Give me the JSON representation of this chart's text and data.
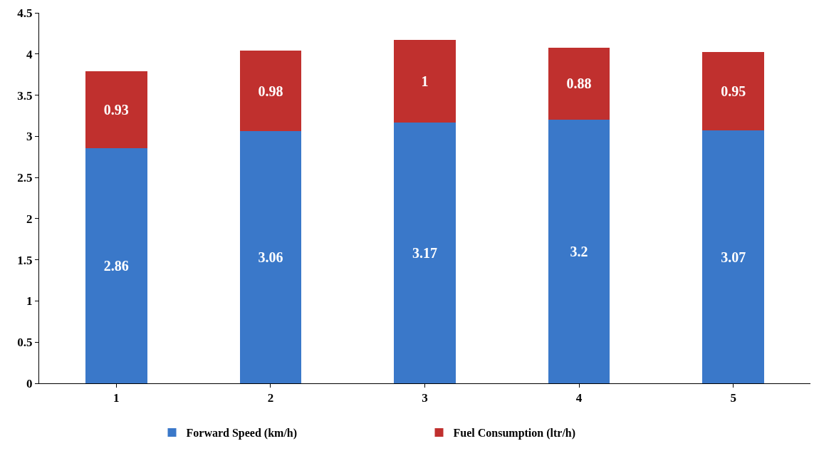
{
  "chart_data": {
    "type": "bar",
    "stacked": true,
    "categories": [
      "1",
      "2",
      "3",
      "4",
      "5"
    ],
    "series": [
      {
        "name": "Forward Speed (km/h)",
        "color": "#3a78c9",
        "values": [
          2.86,
          3.06,
          3.17,
          3.2,
          3.07
        ]
      },
      {
        "name": "Fuel Consumption (ltr/h)",
        "color": "#c0302e",
        "values": [
          0.93,
          0.98,
          1,
          0.88,
          0.95
        ]
      }
    ],
    "ylim": [
      0,
      4.5
    ],
    "yticks": [
      0,
      0.5,
      1,
      1.5,
      2,
      2.5,
      3,
      3.5,
      4,
      4.5
    ],
    "legend": "bottom",
    "data_labels": true
  }
}
